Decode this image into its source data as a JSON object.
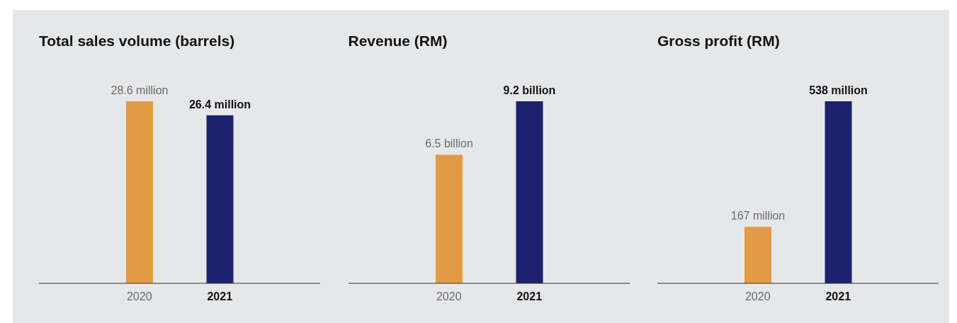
{
  "chart_data": [
    {
      "type": "bar",
      "title": "Total sales volume (barrels)",
      "categories": [
        "2020",
        "2021"
      ],
      "values": [
        28.6,
        26.4
      ],
      "colors": [
        "#e39b43",
        "#1e226e"
      ],
      "value_labels": [
        "28.6 million",
        "26.4 million"
      ]
    },
    {
      "type": "bar",
      "title": "Revenue (RM)",
      "categories": [
        "2020",
        "2021"
      ],
      "values": [
        6.5,
        9.2
      ],
      "colors": [
        "#e39b43",
        "#1e226e"
      ],
      "value_labels": [
        "6.5 billion",
        "9.2 billion"
      ]
    },
    {
      "type": "bar",
      "title": "Gross profit (RM)",
      "categories": [
        "2020",
        "2021"
      ],
      "values": [
        167,
        538
      ],
      "colors": [
        "#e39b43",
        "#1e226e"
      ],
      "value_labels": [
        "167 million",
        "538 million"
      ]
    }
  ]
}
